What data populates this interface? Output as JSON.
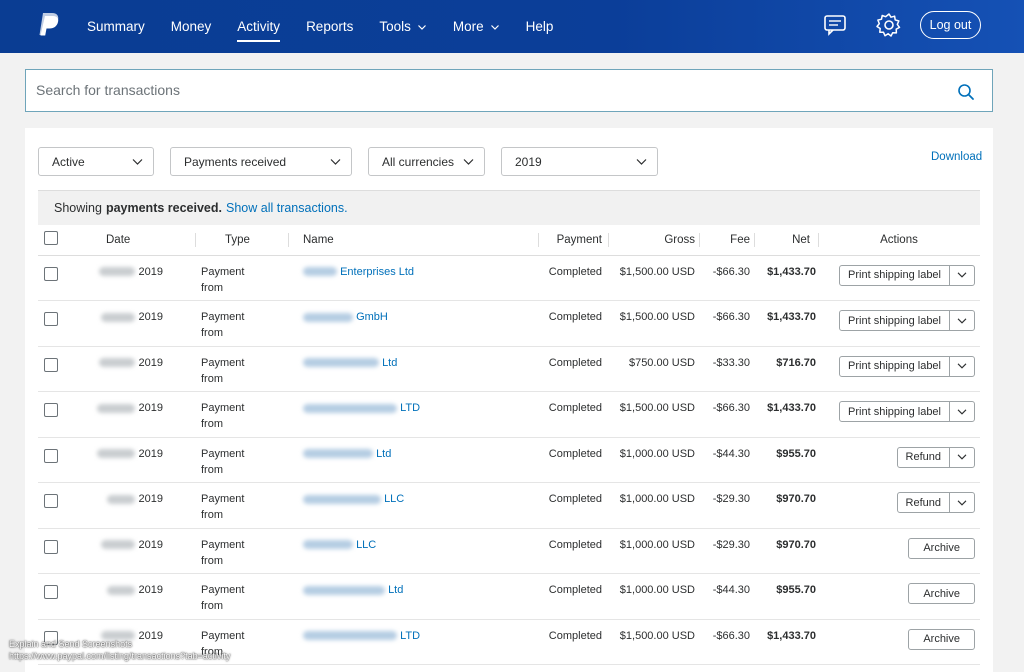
{
  "header": {
    "nav": [
      {
        "label": "Summary",
        "dropdown": false,
        "active": false
      },
      {
        "label": "Money",
        "dropdown": false,
        "active": false
      },
      {
        "label": "Activity",
        "dropdown": false,
        "active": true
      },
      {
        "label": "Reports",
        "dropdown": false,
        "active": false
      },
      {
        "label": "Tools",
        "dropdown": true,
        "active": false
      },
      {
        "label": "More",
        "dropdown": true,
        "active": false
      },
      {
        "label": "Help",
        "dropdown": false,
        "active": false
      }
    ],
    "logout_label": "Log out",
    "icons": [
      "paypal-logo",
      "messages-icon",
      "settings-gear-icon"
    ]
  },
  "search": {
    "placeholder": "Search for transactions"
  },
  "filters": {
    "status": "Active",
    "type": "Payments received",
    "currency": "All currencies",
    "year": "2019",
    "download_label": "Download"
  },
  "showing": {
    "prefix": "Showing",
    "bold": "payments received.",
    "link": "Show all transactions."
  },
  "table": {
    "headers": [
      "Date",
      "Type",
      "Name",
      "Payment",
      "Gross",
      "Fee",
      "Net",
      "Actions"
    ],
    "rows": [
      {
        "date": "2019",
        "type": "Payment from",
        "name": "Enterprises Ltd",
        "payment": "Completed",
        "gross": "$1,500.00 USD",
        "fee": "-$66.30",
        "net": "$1,433.70",
        "action": "Print shipping label",
        "has_menu": true
      },
      {
        "date": "2019",
        "type": "Payment from",
        "name": "GmbH",
        "payment": "Completed",
        "gross": "$1,500.00 USD",
        "fee": "-$66.30",
        "net": "$1,433.70",
        "action": "Print shipping label",
        "has_menu": true
      },
      {
        "date": "2019",
        "type": "Payment from",
        "name": "Ltd",
        "payment": "Completed",
        "gross": "$750.00 USD",
        "fee": "-$33.30",
        "net": "$716.70",
        "action": "Print shipping label",
        "has_menu": true
      },
      {
        "date": "2019",
        "type": "Payment from",
        "name": "LTD",
        "payment": "Completed",
        "gross": "$1,500.00 USD",
        "fee": "-$66.30",
        "net": "$1,433.70",
        "action": "Print shipping label",
        "has_menu": true
      },
      {
        "date": "2019",
        "type": "Payment from",
        "name": "Ltd",
        "payment": "Completed",
        "gross": "$1,000.00 USD",
        "fee": "-$44.30",
        "net": "$955.70",
        "action": "Refund",
        "has_menu": true
      },
      {
        "date": "2019",
        "type": "Payment from",
        "name": "LLC",
        "payment": "Completed",
        "gross": "$1,000.00 USD",
        "fee": "-$29.30",
        "net": "$970.70",
        "action": "Refund",
        "has_menu": true
      },
      {
        "date": "2019",
        "type": "Payment from",
        "name": "LLC",
        "payment": "Completed",
        "gross": "$1,000.00 USD",
        "fee": "-$29.30",
        "net": "$970.70",
        "action": "Archive",
        "has_menu": false
      },
      {
        "date": "2019",
        "type": "Payment from",
        "name": "Ltd",
        "payment": "Completed",
        "gross": "$1,000.00 USD",
        "fee": "-$44.30",
        "net": "$955.70",
        "action": "Archive",
        "has_menu": false
      },
      {
        "date": "2019",
        "type": "Payment from",
        "name": "LTD",
        "payment": "Completed",
        "gross": "$1,500.00 USD",
        "fee": "-$66.30",
        "net": "$1,433.70",
        "action": "Archive",
        "has_menu": false
      }
    ]
  },
  "watermark": {
    "line1": "Explain and Send Screenshots",
    "line2": "https://www.paypal.com/listing/transactions?tab=activity"
  },
  "colors": {
    "header": "#0b3e99",
    "link": "#0070ba",
    "search_border": "#6fa5ba"
  }
}
